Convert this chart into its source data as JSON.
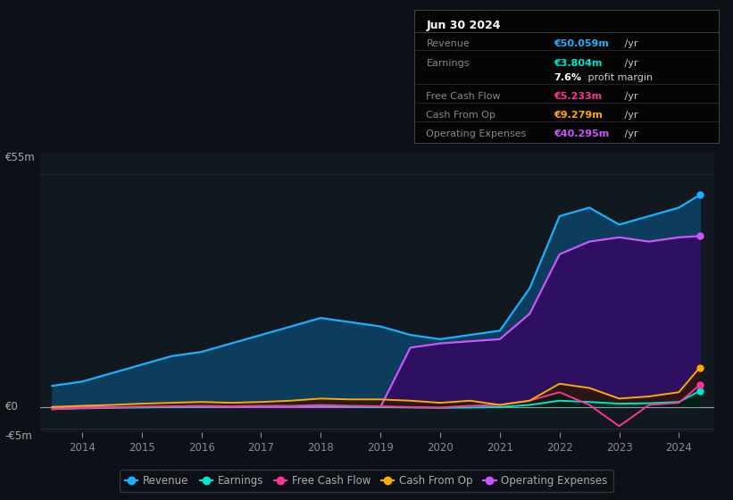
{
  "background_color": "#0d1117",
  "plot_bg_color": "#111820",
  "years": [
    2013.5,
    2014.0,
    2014.5,
    2015.0,
    2015.5,
    2016.0,
    2016.5,
    2017.0,
    2017.5,
    2018.0,
    2018.5,
    2019.0,
    2019.5,
    2020.0,
    2020.5,
    2021.0,
    2021.5,
    2022.0,
    2022.5,
    2023.0,
    2023.5,
    2024.0,
    2024.35
  ],
  "revenue": [
    5,
    6,
    8,
    10,
    12,
    13,
    15,
    17,
    19,
    21,
    20,
    19,
    17,
    16,
    17,
    18,
    28,
    45,
    47,
    43,
    45,
    47,
    50
  ],
  "earnings": [
    -0.5,
    -0.3,
    -0.2,
    -0.1,
    0.0,
    0.1,
    0.1,
    0.2,
    0.2,
    0.3,
    0.1,
    0.0,
    -0.1,
    -0.2,
    -0.1,
    0.0,
    0.5,
    1.5,
    1.2,
    0.8,
    0.9,
    1.2,
    3.8
  ],
  "free_cash_flow": [
    -0.5,
    -0.2,
    -0.1,
    0.1,
    0.2,
    0.3,
    0.2,
    0.3,
    0.3,
    0.5,
    0.3,
    0.2,
    0.0,
    -0.1,
    0.3,
    0.5,
    1.5,
    3.5,
    0.5,
    -4.5,
    0.5,
    1.0,
    5.2
  ],
  "cash_from_op": [
    0.0,
    0.3,
    0.5,
    0.8,
    1.0,
    1.2,
    1.0,
    1.2,
    1.5,
    2.0,
    1.8,
    1.8,
    1.5,
    1.0,
    1.5,
    0.5,
    1.5,
    5.5,
    4.5,
    2.0,
    2.5,
    3.5,
    9.3
  ],
  "op_expenses": [
    0,
    0,
    0,
    0,
    0,
    0,
    0,
    0,
    0,
    0,
    0,
    0,
    14,
    15,
    15.5,
    16,
    22,
    36,
    39,
    40,
    39,
    40,
    40.3
  ],
  "ylim": [
    -6,
    60
  ],
  "y_top_label": "€55m",
  "y_zero_label": "€0",
  "y_bot_label": "-€5m",
  "y_top_val": 55,
  "y_zero_val": 0,
  "y_bot_val": -5,
  "xticks": [
    2014,
    2015,
    2016,
    2017,
    2018,
    2019,
    2020,
    2021,
    2022,
    2023,
    2024
  ],
  "revenue_color": "#1ab2ff",
  "revenue_fill": "#0d3d5c",
  "earnings_color": "#00e5cc",
  "earnings_fill": "#003d38",
  "free_cash_flow_color": "#ff3399",
  "cash_from_op_color": "#ffaa00",
  "op_expenses_color": "#cc55ff",
  "op_expenses_fill": "#2d1060",
  "grid_color": "#1e2d3d",
  "zero_line_color": "#cccccc",
  "text_color": "#888899",
  "label_color": "#aaaaaa",
  "legend_items": [
    {
      "label": "Revenue",
      "color": "#1ab2ff"
    },
    {
      "label": "Earnings",
      "color": "#00e5cc"
    },
    {
      "label": "Free Cash Flow",
      "color": "#ff3399"
    },
    {
      "label": "Cash From Op",
      "color": "#ffaa00"
    },
    {
      "label": "Operating Expenses",
      "color": "#cc55ff"
    }
  ],
  "info_title": "Jun 30 2024",
  "info_rows": [
    {
      "label": "Revenue",
      "value": "€50.059m",
      "suffix": " /yr",
      "value_color": "#1ab2ff",
      "separator": true
    },
    {
      "label": "Earnings",
      "value": "€3.804m",
      "suffix": " /yr",
      "value_color": "#00e5cc",
      "separator": false
    },
    {
      "label": "",
      "value": "7.6%",
      "suffix": " profit margin",
      "value_color": "#ffffff",
      "separator": true
    },
    {
      "label": "Free Cash Flow",
      "value": "€5.233m",
      "suffix": " /yr",
      "value_color": "#ff3399",
      "separator": true
    },
    {
      "label": "Cash From Op",
      "value": "€9.279m",
      "suffix": " /yr",
      "value_color": "#ffaa00",
      "separator": true
    },
    {
      "label": "Operating Expenses",
      "value": "€40.295m",
      "suffix": " /yr",
      "value_color": "#cc55ff",
      "separator": false
    }
  ]
}
